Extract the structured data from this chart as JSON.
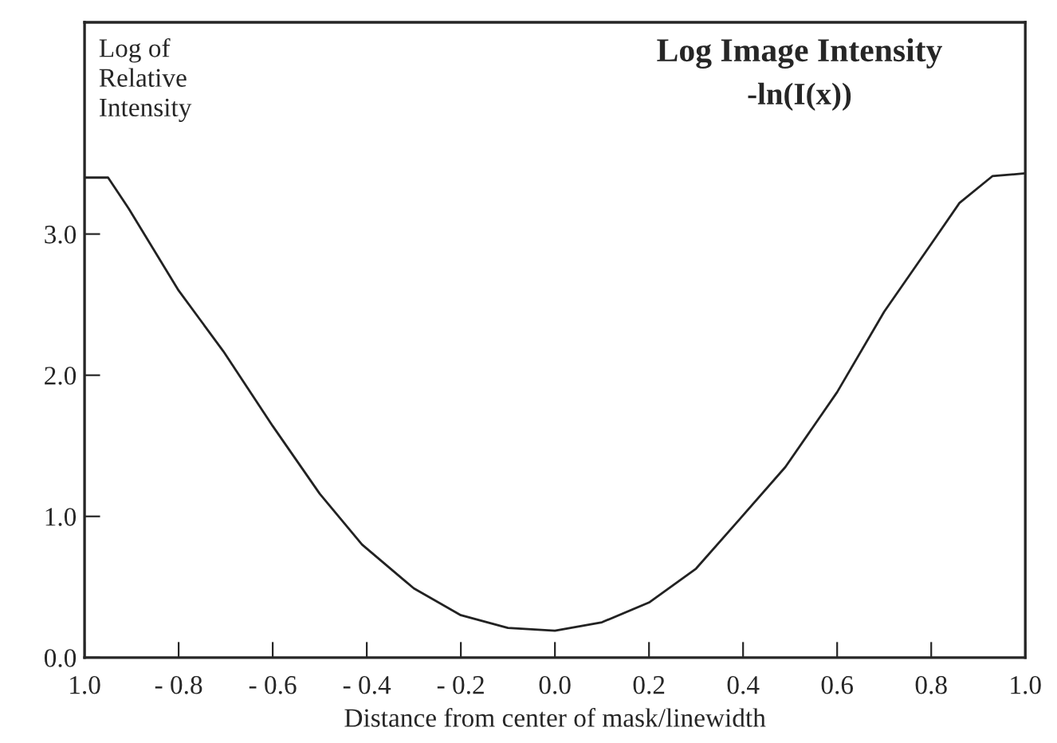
{
  "chart_data": {
    "type": "line",
    "title": "Log Image Intensity",
    "subtitle": "-ln(I(x))",
    "ylabel": "Log of\nRelative\nIntensity",
    "xlabel": "Distance from center of mask/linewidth",
    "x": [
      -1.0,
      -0.95,
      -0.906,
      -0.8,
      -0.705,
      -0.6,
      -0.5,
      -0.41,
      -0.3,
      -0.2,
      -0.1,
      0.0,
      0.1,
      0.2,
      0.3,
      0.39,
      0.49,
      0.6,
      0.7,
      0.8,
      0.86,
      0.93,
      1.0
    ],
    "series": [
      {
        "color": "#222222",
        "values": [
          3.4,
          3.4,
          3.18,
          2.6,
          2.17,
          1.64,
          1.16,
          0.8,
          0.49,
          0.3,
          0.21,
          0.19,
          0.25,
          0.39,
          0.63,
          0.97,
          1.35,
          1.88,
          2.45,
          2.93,
          3.22,
          3.41,
          3.43
        ]
      }
    ],
    "xlim": [
      -1.0,
      1.0
    ],
    "ylim": [
      0,
      4.5
    ],
    "xticks": [
      {
        "value": -1.0,
        "label": "1.0"
      },
      {
        "value": -0.8,
        "label": "- 0.8"
      },
      {
        "value": -0.6,
        "label": "- 0.6"
      },
      {
        "value": -0.4,
        "label": "- 0.4"
      },
      {
        "value": -0.2,
        "label": "- 0.2"
      },
      {
        "value": 0.0,
        "label": "0.0"
      },
      0.2,
      0.4,
      0.6,
      0.8,
      {
        "value": 1.0,
        "label": "1.0"
      }
    ],
    "yticks": [
      {
        "value": 0,
        "label": "0.0"
      },
      {
        "value": 1,
        "label": "1.0"
      },
      {
        "value": 2,
        "label": "2.0"
      },
      {
        "value": 3,
        "label": "3.0"
      }
    ],
    "grid": false,
    "legend": false,
    "marker": "none",
    "line_style": "solid"
  }
}
